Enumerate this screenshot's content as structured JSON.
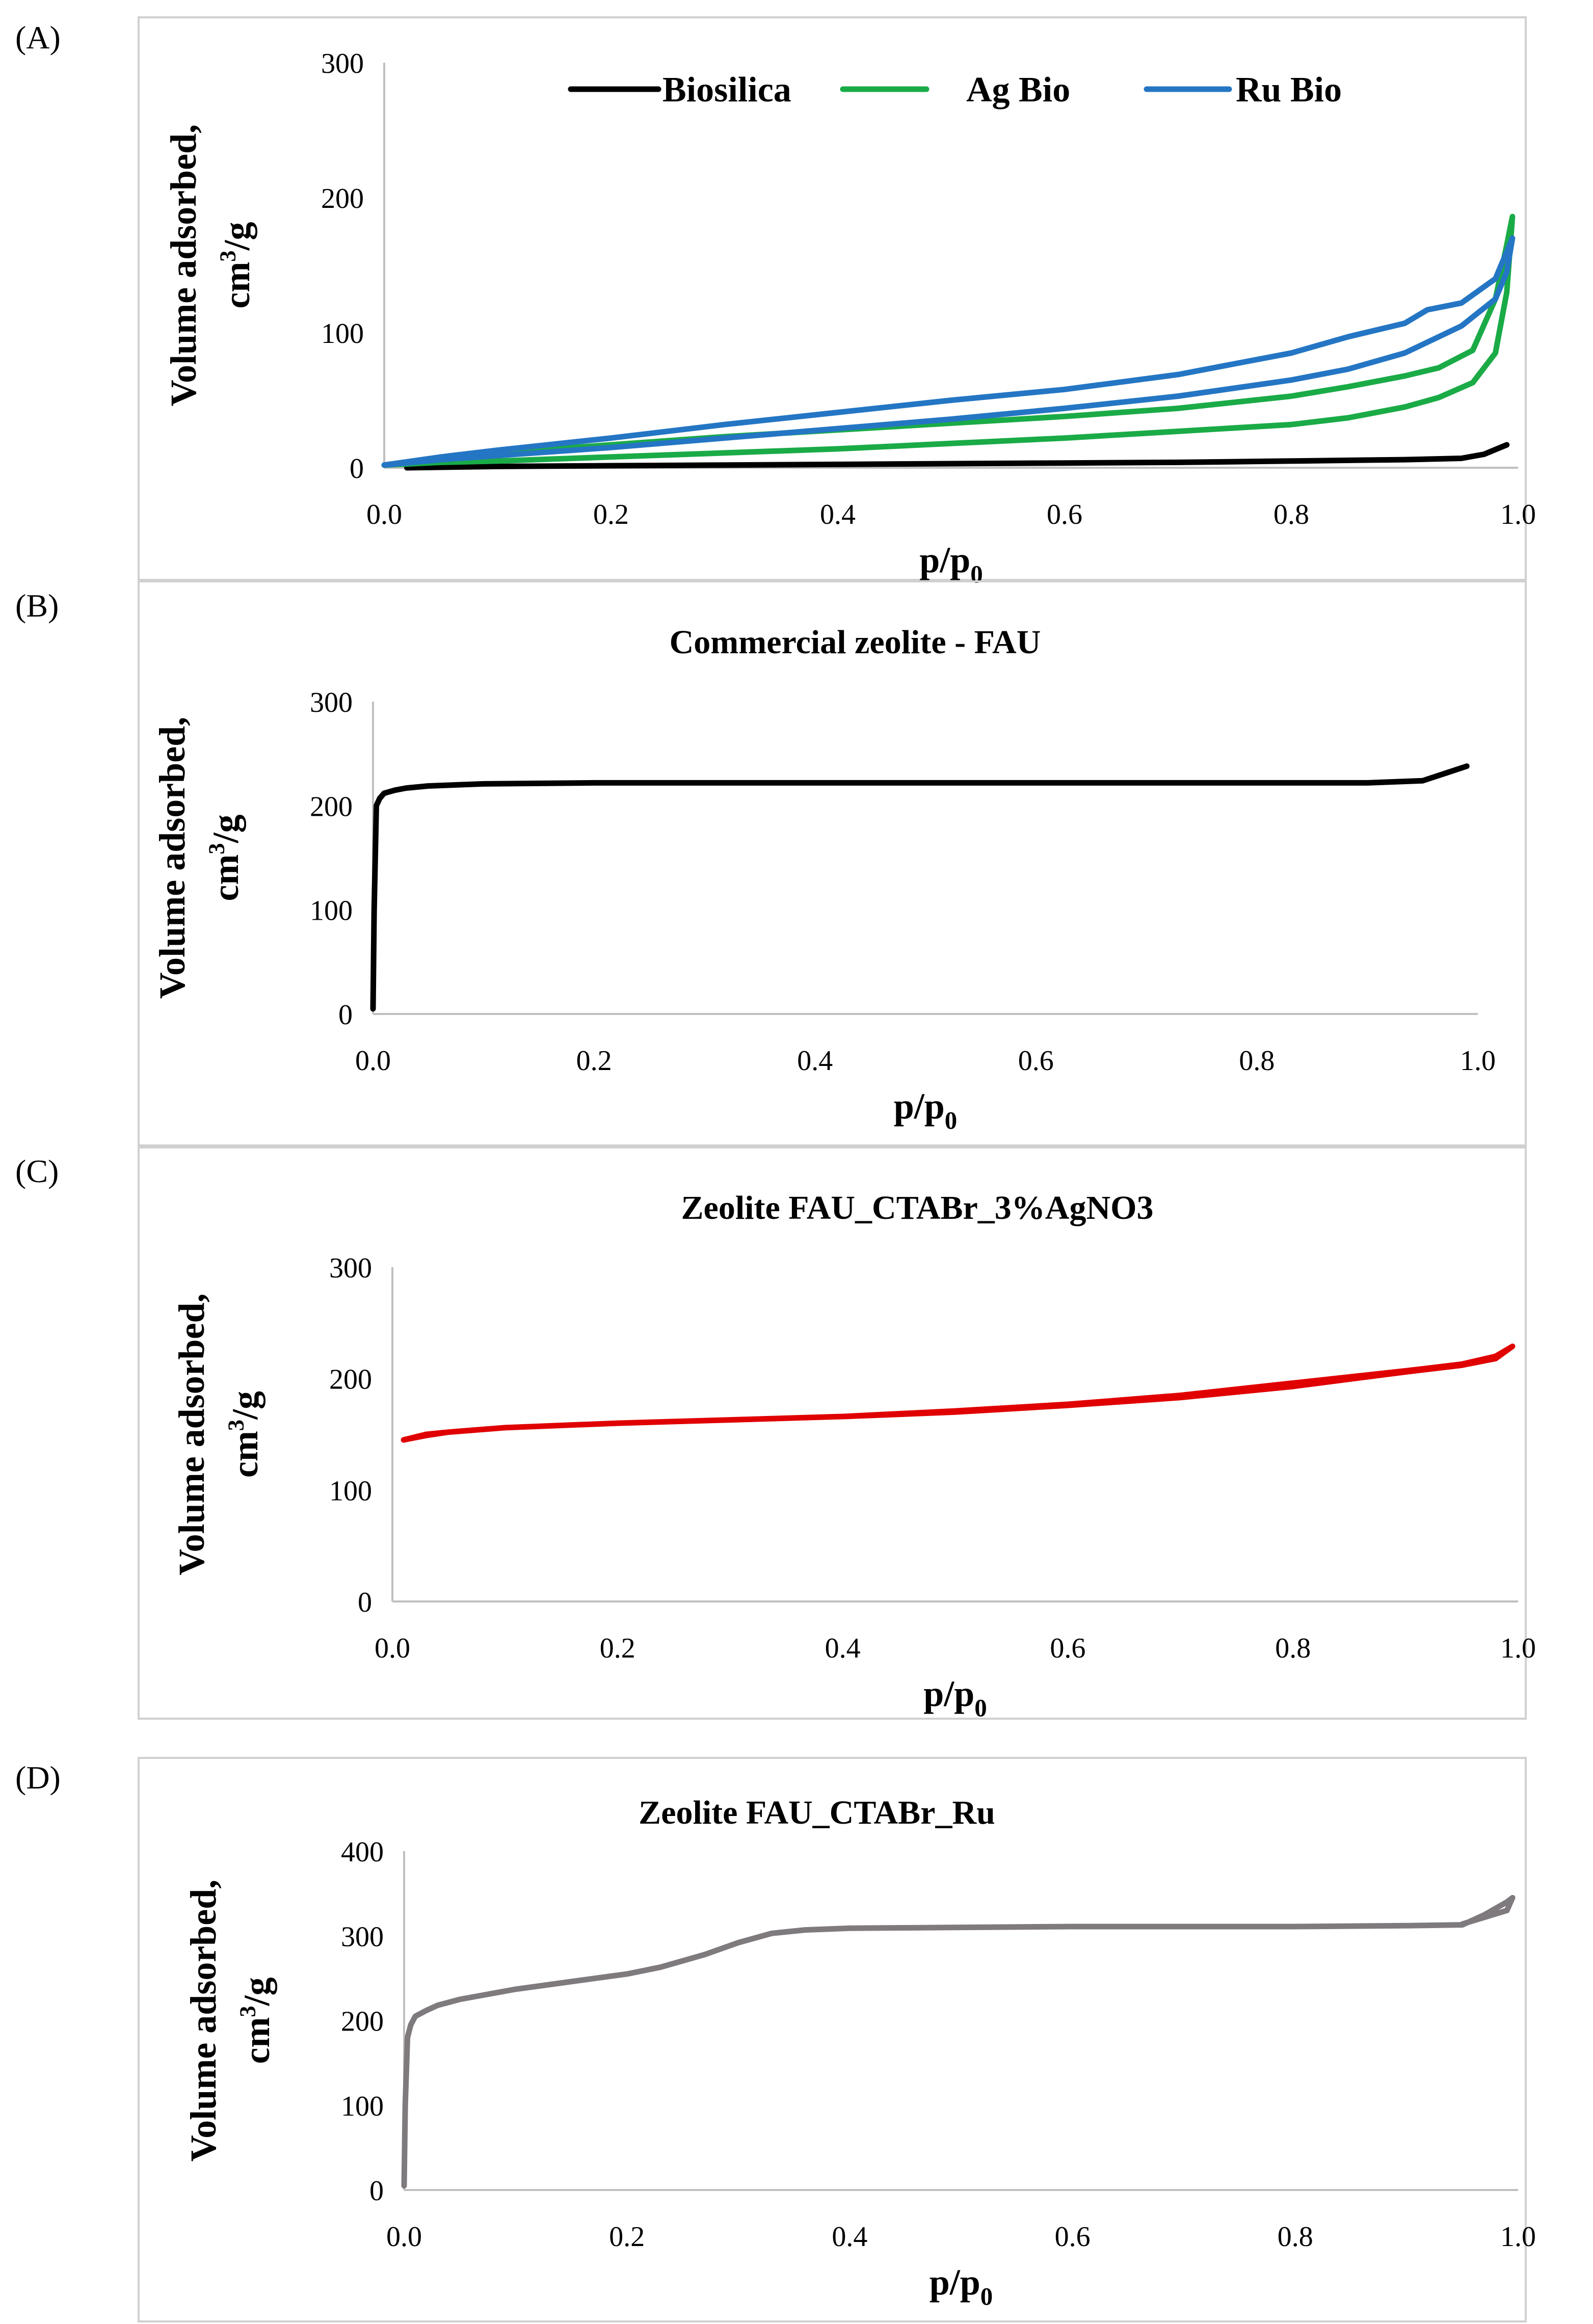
{
  "chart_data": [
    {
      "type": "line",
      "panel_label": "(A)",
      "title": "",
      "xlabel": "p/p0",
      "ylabel_line1": "Volume adsorbed,",
      "ylabel_line2": "cm3/g",
      "xlim": [
        0,
        1
      ],
      "ylim": [
        0,
        300
      ],
      "xticks": [
        0,
        0.2,
        0.4,
        0.6,
        0.8,
        1
      ],
      "xtick_labels": [
        "0.0",
        "0.2",
        "0.4",
        "0.6",
        "0.8",
        "1.0"
      ],
      "yticks": [
        0,
        100,
        200,
        300
      ],
      "ytick_labels": [
        "0",
        "100",
        "200",
        "300"
      ],
      "legend": [
        "Biosilica",
        "Ag Bio",
        "Ru Bio"
      ],
      "series": [
        {
          "name": "Biosilica",
          "color": "#000000",
          "x": [
            0.02,
            0.1,
            0.2,
            0.3,
            0.4,
            0.5,
            0.6,
            0.7,
            0.8,
            0.9,
            0.95,
            0.97,
            0.99
          ],
          "y": [
            0,
            1,
            1.5,
            2,
            2.5,
            3,
            3.5,
            4,
            5,
            6,
            7,
            10,
            17
          ]
        },
        {
          "name": "Ag Bio",
          "color": "#1aab47",
          "x": [
            0.0,
            0.05,
            0.1,
            0.2,
            0.3,
            0.4,
            0.5,
            0.6,
            0.7,
            0.8,
            0.85,
            0.9,
            0.93,
            0.96,
            0.98,
            0.99,
            0.995,
            0.99,
            0.98,
            0.96,
            0.93,
            0.9,
            0.85,
            0.8,
            0.7,
            0.6,
            0.5,
            0.4,
            0.3,
            0.2,
            0.1,
            0.05,
            0.0
          ],
          "y": [
            2,
            4,
            5,
            8,
            11,
            14,
            18,
            22,
            27,
            32,
            37,
            45,
            52,
            63,
            85,
            130,
            186,
            165,
            125,
            87,
            74,
            68,
            60,
            53,
            44,
            38,
            33,
            28,
            23,
            17,
            11,
            7,
            2
          ]
        },
        {
          "name": "Ru Bio",
          "color": "#2476c4",
          "x": [
            0.0,
            0.05,
            0.1,
            0.2,
            0.3,
            0.4,
            0.5,
            0.6,
            0.7,
            0.8,
            0.85,
            0.9,
            0.95,
            0.98,
            0.99,
            0.995,
            0.99,
            0.98,
            0.95,
            0.92,
            0.9,
            0.85,
            0.8,
            0.7,
            0.6,
            0.5,
            0.4,
            0.3,
            0.2,
            0.1,
            0.05,
            0.0
          ],
          "y": [
            2,
            6,
            9,
            15,
            22,
            29,
            36,
            44,
            53,
            65,
            73,
            85,
            105,
            125,
            145,
            170,
            160,
            140,
            122,
            117,
            107,
            97,
            85,
            69,
            58,
            50,
            41,
            32,
            22,
            13,
            8,
            2
          ]
        }
      ]
    },
    {
      "type": "line",
      "panel_label": "(B)",
      "title": "Commercial zeolite - FAU",
      "xlabel": "p/p0",
      "ylabel_line1": "Volume adsorbed,",
      "ylabel_line2": "cm3/g",
      "xlim": [
        0,
        1
      ],
      "ylim": [
        0,
        300
      ],
      "xticks": [
        0,
        0.2,
        0.4,
        0.6,
        0.8,
        1
      ],
      "xtick_labels": [
        "0.0",
        "0.2",
        "0.4",
        "0.6",
        "0.8",
        "1.0"
      ],
      "yticks": [
        0,
        100,
        200,
        300
      ],
      "ytick_labels": [
        "0",
        "100",
        "200",
        "300"
      ],
      "series": [
        {
          "name": "Commercial zeolite - FAU",
          "color": "#000000",
          "x": [
            0.0,
            0.001,
            0.003,
            0.006,
            0.01,
            0.02,
            0.03,
            0.05,
            0.1,
            0.2,
            0.4,
            0.6,
            0.8,
            0.9,
            0.95,
            0.97,
            0.99
          ],
          "y": [
            5,
            100,
            200,
            207,
            212,
            215,
            217,
            219,
            221,
            222,
            222,
            222,
            222,
            222,
            224,
            231,
            238
          ]
        }
      ]
    },
    {
      "type": "line",
      "panel_label": "(C)",
      "title": "Zeolite FAU_CTABr_3%AgNO3",
      "xlabel": "p/p0",
      "ylabel_line1": "Volume adsorbed,",
      "ylabel_line2": "cm3/g",
      "xlim": [
        0,
        1
      ],
      "ylim": [
        0,
        300
      ],
      "xticks": [
        0,
        0.2,
        0.4,
        0.6,
        0.8,
        1
      ],
      "xtick_labels": [
        "0.0",
        "0.2",
        "0.4",
        "0.6",
        "0.8",
        "1.0"
      ],
      "yticks": [
        0,
        100,
        200,
        300
      ],
      "ytick_labels": [
        "0",
        "100",
        "200",
        "300"
      ],
      "series": [
        {
          "name": "Zeolite FAU_CTABr_3%AgNO3",
          "color": "#e00000",
          "x": [
            0.01,
            0.03,
            0.05,
            0.1,
            0.2,
            0.3,
            0.4,
            0.5,
            0.6,
            0.7,
            0.8,
            0.9,
            0.95,
            0.98,
            0.995,
            0.98,
            0.95,
            0.9,
            0.8,
            0.7,
            0.6,
            0.5,
            0.4,
            0.3,
            0.2,
            0.1,
            0.05,
            0.03,
            0.01
          ],
          "y": [
            145,
            149,
            152,
            156,
            160,
            163,
            166,
            171,
            177,
            185,
            196,
            207,
            213,
            220,
            229,
            218,
            212,
            206,
            193,
            183,
            176,
            170,
            166,
            163,
            160,
            156,
            152,
            150,
            145
          ]
        }
      ]
    },
    {
      "type": "line",
      "panel_label": "(D)",
      "title": "Zeolite FAU_CTABr_Ru",
      "xlabel": "p/p0",
      "ylabel_line1": "Volume adsorbed,",
      "ylabel_line2": "cm3/g",
      "xlim": [
        0,
        1
      ],
      "ylim": [
        0,
        400
      ],
      "xticks": [
        0,
        0.2,
        0.4,
        0.6,
        0.8,
        1
      ],
      "xtick_labels": [
        "0.0",
        "0.2",
        "0.4",
        "0.6",
        "0.8",
        "1.0"
      ],
      "yticks": [
        0,
        100,
        200,
        300,
        400
      ],
      "ytick_labels": [
        "0",
        "100",
        "200",
        "300",
        "400"
      ],
      "series": [
        {
          "name": "Zeolite FAU_CTABr_Ru",
          "color": "#7f7a7d",
          "x": [
            0.0,
            0.001,
            0.003,
            0.006,
            0.01,
            0.02,
            0.03,
            0.05,
            0.1,
            0.15,
            0.2,
            0.23,
            0.27,
            0.3,
            0.33,
            0.36,
            0.4,
            0.5,
            0.6,
            0.7,
            0.8,
            0.9,
            0.95,
            0.97,
            0.99,
            0.995,
            0.99,
            0.97,
            0.95
          ],
          "y": [
            5,
            100,
            180,
            195,
            205,
            212,
            218,
            225,
            237,
            246,
            255,
            263,
            278,
            292,
            303,
            307,
            309,
            310,
            311,
            311,
            311,
            312,
            313,
            325,
            340,
            345,
            330,
            322,
            314
          ]
        }
      ]
    }
  ]
}
